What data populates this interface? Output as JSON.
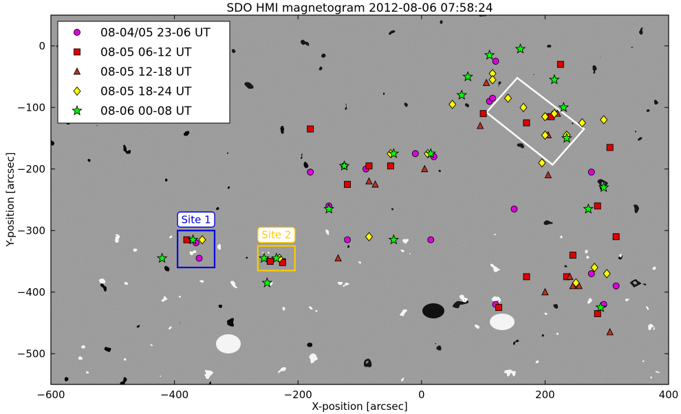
{
  "chart_data": {
    "type": "scatter",
    "title": "SDO HMI magnetogram 2012-08-06 07:58:24",
    "xlabel": "X-position [arcsec]",
    "ylabel": "Y-position [arcsec]",
    "xlim": [
      -600,
      400
    ],
    "ylim": [
      -550,
      50
    ],
    "xticks": [
      -600,
      -400,
      -200,
      0,
      200,
      400
    ],
    "yticks": [
      0,
      -100,
      -200,
      -300,
      -400,
      -500
    ],
    "xtick_labels": [
      "−600",
      "−400",
      "−200",
      "0",
      "200",
      "400"
    ],
    "ytick_labels": [
      "0",
      "−100",
      "−200",
      "−300",
      "−400",
      "−500"
    ],
    "grid": false,
    "legend_position": "top-left",
    "background": "grayscale magnetogram",
    "series": [
      {
        "name": "08-04/05 23-06 UT",
        "marker": "circle",
        "color": "#e000e0",
        "points": [
          [
            -365,
            -320
          ],
          [
            -360,
            -345
          ],
          [
            -180,
            -205
          ],
          [
            -125,
            -195
          ],
          [
            -90,
            -200
          ],
          [
            -150,
            -260
          ],
          [
            -120,
            -315
          ],
          [
            15,
            -315
          ],
          [
            20,
            -180
          ],
          [
            -10,
            -175
          ],
          [
            110,
            -90
          ],
          [
            115,
            -85
          ],
          [
            120,
            -25
          ],
          [
            150,
            -265
          ],
          [
            215,
            -110
          ],
          [
            275,
            -205
          ],
          [
            295,
            -420
          ],
          [
            275,
            -370
          ],
          [
            315,
            -390
          ],
          [
            120,
            -420
          ],
          [
            205,
            -115
          ]
        ]
      },
      {
        "name": "08-05 06-12 UT",
        "marker": "square",
        "color": "#e00000",
        "points": [
          [
            -380,
            -315
          ],
          [
            -180,
            -135
          ],
          [
            -120,
            -225
          ],
          [
            -85,
            -195
          ],
          [
            -50,
            -195
          ],
          [
            -245,
            -350
          ],
          [
            -225,
            -352
          ],
          [
            100,
            -110
          ],
          [
            170,
            -125
          ],
          [
            225,
            -30
          ],
          [
            305,
            -165
          ],
          [
            285,
            -260
          ],
          [
            315,
            -310
          ],
          [
            245,
            -340
          ],
          [
            170,
            -375
          ],
          [
            235,
            -375
          ],
          [
            285,
            -435
          ],
          [
            125,
            -425
          ],
          [
            210,
            -115
          ]
        ]
      },
      {
        "name": "08-05 12-18 UT",
        "marker": "triangle",
        "color": "#c03020",
        "points": [
          [
            -85,
            -220
          ],
          [
            -75,
            -225
          ],
          [
            -135,
            -345
          ],
          [
            5,
            -200
          ],
          [
            95,
            -130
          ],
          [
            105,
            -60
          ],
          [
            205,
            -145
          ],
          [
            205,
            -210
          ],
          [
            240,
            -375
          ],
          [
            245,
            -390
          ],
          [
            255,
            -390
          ],
          [
            200,
            -400
          ],
          [
            305,
            -465
          ],
          [
            220,
            -110
          ]
        ]
      },
      {
        "name": "08-05 18-24 UT",
        "marker": "diamond",
        "color": "#ffff00",
        "points": [
          [
            -355,
            -315
          ],
          [
            -230,
            -345
          ],
          [
            -85,
            -310
          ],
          [
            -50,
            -175
          ],
          [
            10,
            -175
          ],
          [
            50,
            -95
          ],
          [
            115,
            -45
          ],
          [
            115,
            -55
          ],
          [
            140,
            -85
          ],
          [
            165,
            -100
          ],
          [
            200,
            -115
          ],
          [
            215,
            -110
          ],
          [
            200,
            -145
          ],
          [
            195,
            -190
          ],
          [
            235,
            -145
          ],
          [
            260,
            -125
          ],
          [
            295,
            -120
          ],
          [
            280,
            -360
          ],
          [
            250,
            -385
          ],
          [
            300,
            -370
          ]
        ]
      },
      {
        "name": "08-06 00-08 UT",
        "marker": "star",
        "color": "#00ff00",
        "points": [
          [
            -420,
            -345
          ],
          [
            -370,
            -315
          ],
          [
            -255,
            -345
          ],
          [
            -235,
            -345
          ],
          [
            -250,
            -385
          ],
          [
            -125,
            -195
          ],
          [
            -150,
            -265
          ],
          [
            -45,
            -315
          ],
          [
            -45,
            -175
          ],
          [
            15,
            -175
          ],
          [
            65,
            -80
          ],
          [
            75,
            -50
          ],
          [
            110,
            -15
          ],
          [
            160,
            -5
          ],
          [
            215,
            -55
          ],
          [
            230,
            -100
          ],
          [
            235,
            -150
          ],
          [
            295,
            -230
          ],
          [
            270,
            -265
          ],
          [
            290,
            -425
          ]
        ]
      }
    ],
    "boxes": [
      {
        "label": "Site 1",
        "color": "#0000dd",
        "x": [
          -395,
          -335
        ],
        "y": [
          -360,
          -300
        ]
      },
      {
        "label": "Site 2",
        "color": "#ffcc00",
        "x": [
          -265,
          -205
        ],
        "y": [
          -365,
          -325
        ]
      },
      {
        "label": "",
        "color": "#ffffff",
        "rotated": true,
        "corners": [
          [
            105,
            -108
          ],
          [
            155,
            -52
          ],
          [
            263,
            -135
          ],
          [
            212,
            -193
          ]
        ]
      }
    ]
  }
}
